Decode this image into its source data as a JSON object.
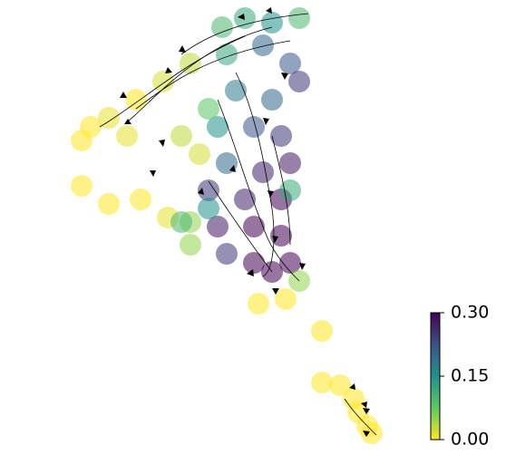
{
  "chart_data": {
    "type": "scatter",
    "xlim": [
      0,
      558
    ],
    "ylim": [
      513,
      0
    ],
    "x": [
      90,
      120,
      150,
      180,
      210,
      100,
      140,
      90,
      120,
      155,
      185,
      210,
      245,
      270,
      300,
      330,
      250,
      290,
      320,
      330,
      260,
      300,
      240,
      280,
      310,
      320,
      250,
      290,
      230,
      270,
      310,
      240,
      280,
      310,
      320,
      280,
      250,
      300,
      330,
      220,
      210,
      230,
      200,
      285,
      315,
      355,
      355,
      375,
      390,
      395,
      405,
      410,
      320,
      230,
      200
    ],
    "values": [
      155,
      130,
      110,
      90,
      70,
      140,
      150,
      205,
      225,
      220,
      240,
      245,
      30,
      20,
      25,
      20,
      60,
      50,
      70,
      90,
      100,
      110,
      140,
      140,
      150,
      180,
      180,
      190,
      210,
      220,
      220,
      250,
      250,
      260,
      290,
      290,
      280,
      300,
      310,
      170,
      270,
      120,
      150,
      335,
      330,
      365,
      422,
      425,
      440,
      455,
      470,
      478,
      210,
      230,
      245
    ],
    "color_values": [
      0,
      0.01,
      0,
      0.02,
      0.03,
      0,
      0.01,
      0,
      0,
      0,
      0.01,
      0.05,
      0.1,
      0.12,
      0.15,
      0.1,
      0.12,
      0.2,
      0.22,
      0.25,
      0.18,
      0.2,
      0.15,
      0.22,
      0.25,
      0.28,
      0.2,
      0.27,
      0.25,
      0.27,
      0.3,
      0.28,
      0.3,
      0.3,
      0.3,
      0.3,
      0.25,
      0.3,
      0.05,
      0.02,
      0.05,
      0.08,
      0.03,
      0,
      0,
      0,
      0,
      0,
      0,
      0,
      0,
      0,
      0.12,
      0.15,
      0.1
    ],
    "colormap": [
      "#fde725",
      "#5ec962",
      "#21918c",
      "#3b528b",
      "#440154"
    ],
    "clim": [
      0,
      0.3
    ],
    "cticks": [
      {
        "value": 0,
        "label": "0.00"
      },
      {
        "value": 0.15,
        "label": "0.15"
      },
      {
        "value": 0.3,
        "label": "0.30"
      }
    ]
  }
}
